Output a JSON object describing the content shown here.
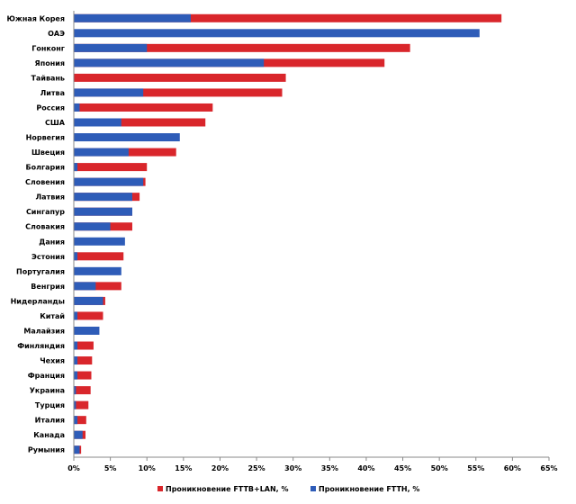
{
  "chart_data": {
    "type": "bar",
    "orientation": "horizontal",
    "layout": "overlapped",
    "categories": [
      "Южная Корея",
      "ОАЭ",
      "Гонконг",
      "Япония",
      "Тайвань",
      "Литва",
      "Россия",
      "США",
      "Норвегия",
      "Швеция",
      "Болгария",
      "Словения",
      "Латвия",
      "Сингапур",
      "Словакия",
      "Дания",
      "Эстония",
      "Португалия",
      "Венгрия",
      "Нидерланды",
      "Китай",
      "Малайзия",
      "Финляндия",
      "Чехия",
      "Франция",
      "Украина",
      "Турция",
      "Италия",
      "Канада",
      "Румыния"
    ],
    "series": [
      {
        "name": "Проникновение FTTB+LAN, %",
        "color": "#d9262b",
        "values": [
          58.5,
          0,
          46.0,
          42.5,
          29.0,
          28.5,
          19.0,
          18.0,
          0,
          14.0,
          10.0,
          9.8,
          9.0,
          8.0,
          8.0,
          0,
          6.8,
          0,
          6.5,
          4.3,
          4.0,
          0,
          2.7,
          2.5,
          2.4,
          2.3,
          2.0,
          1.7,
          1.6,
          1.0
        ]
      },
      {
        "name": "Проникновение FTTH, %",
        "color": "#2e5cb8",
        "values": [
          16.0,
          55.5,
          10.0,
          26.0,
          0,
          9.5,
          0.8,
          6.5,
          14.5,
          7.5,
          0.5,
          9.5,
          8.0,
          8.0,
          5.0,
          7.0,
          0.5,
          6.5,
          3.0,
          4.0,
          0.5,
          3.5,
          0.5,
          0.5,
          0.5,
          0.3,
          0.3,
          0.5,
          1.2,
          0.8
        ]
      }
    ],
    "x_ticks": [
      "0%",
      "5%",
      "10%",
      "15%",
      "20%",
      "25%",
      "30%",
      "35%",
      "40%",
      "45%",
      "50%",
      "55%",
      "60%",
      "65%"
    ],
    "xlim": [
      0,
      65
    ],
    "grid": false,
    "legend_position": "bottom"
  }
}
